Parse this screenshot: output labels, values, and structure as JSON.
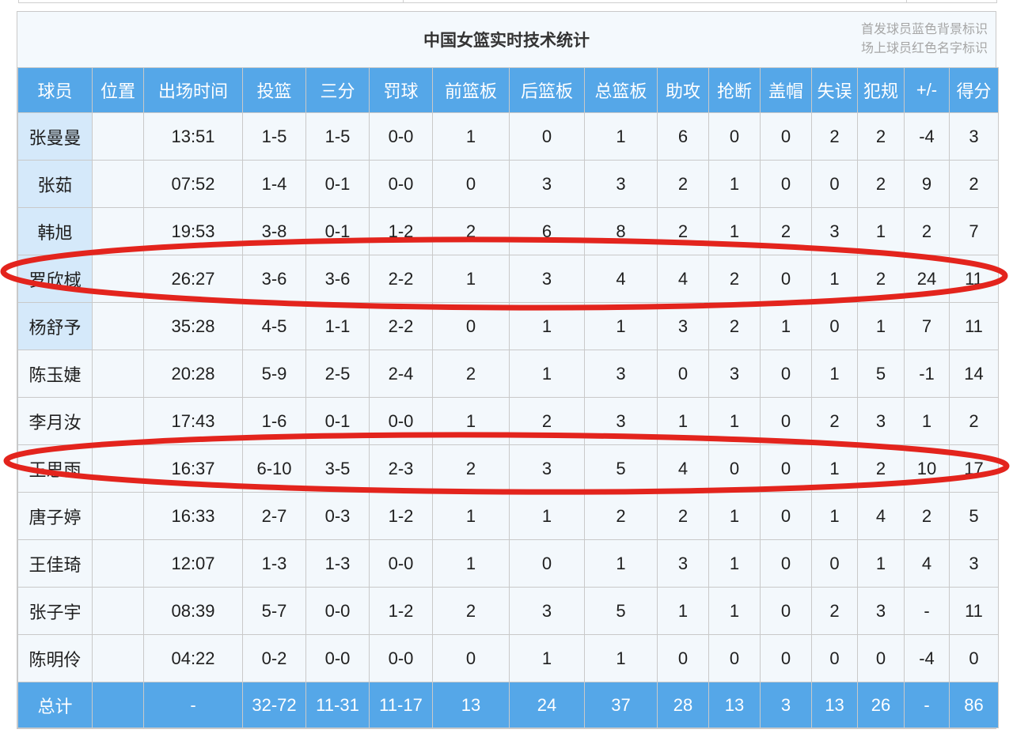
{
  "title": {
    "text": "中国女篮实时技术统计"
  },
  "legend": {
    "line1": "首发球员蓝色背景标识",
    "line2": "场上球员红色名字标识"
  },
  "table": {
    "headers": [
      "球员",
      "位置",
      "出场时间",
      "投篮",
      "三分",
      "罚球",
      "前篮板",
      "后篮板",
      "总篮板",
      "助攻",
      "抢断",
      "盖帽",
      "失误",
      "犯规",
      "+/-",
      "得分"
    ],
    "rows": [
      {
        "player": "张曼曼",
        "starter": true,
        "circled": false,
        "position": "",
        "stats": [
          "13:51",
          "1-5",
          "1-5",
          "0-0",
          "1",
          "0",
          "1",
          "6",
          "0",
          "0",
          "2",
          "2",
          "-4",
          "3"
        ]
      },
      {
        "player": "张茹",
        "starter": true,
        "circled": false,
        "position": "",
        "stats": [
          "07:52",
          "1-4",
          "0-1",
          "0-0",
          "0",
          "3",
          "3",
          "2",
          "1",
          "0",
          "0",
          "2",
          "9",
          "2"
        ]
      },
      {
        "player": "韩旭",
        "starter": true,
        "circled": false,
        "position": "",
        "stats": [
          "19:53",
          "3-8",
          "0-1",
          "1-2",
          "2",
          "6",
          "8",
          "2",
          "1",
          "2",
          "3",
          "1",
          "2",
          "7"
        ]
      },
      {
        "player": "罗欣棫",
        "starter": true,
        "circled": true,
        "position": "",
        "stats": [
          "26:27",
          "3-6",
          "3-6",
          "2-2",
          "1",
          "3",
          "4",
          "4",
          "2",
          "0",
          "1",
          "2",
          "24",
          "11"
        ]
      },
      {
        "player": "杨舒予",
        "starter": true,
        "circled": false,
        "position": "",
        "stats": [
          "35:28",
          "4-5",
          "1-1",
          "2-2",
          "0",
          "1",
          "1",
          "3",
          "2",
          "1",
          "0",
          "1",
          "7",
          "11"
        ]
      },
      {
        "player": "陈玉婕",
        "starter": false,
        "circled": false,
        "position": "",
        "stats": [
          "20:28",
          "5-9",
          "2-5",
          "2-4",
          "2",
          "1",
          "3",
          "0",
          "3",
          "0",
          "1",
          "5",
          "-1",
          "14"
        ]
      },
      {
        "player": "李月汝",
        "starter": false,
        "circled": false,
        "position": "",
        "stats": [
          "17:43",
          "1-6",
          "0-1",
          "0-0",
          "1",
          "2",
          "3",
          "1",
          "1",
          "0",
          "2",
          "3",
          "1",
          "2"
        ]
      },
      {
        "player": "王思雨",
        "starter": false,
        "circled": true,
        "position": "",
        "stats": [
          "16:37",
          "6-10",
          "3-5",
          "2-3",
          "2",
          "3",
          "5",
          "4",
          "0",
          "0",
          "1",
          "2",
          "10",
          "17"
        ]
      },
      {
        "player": "唐子婷",
        "starter": false,
        "circled": false,
        "position": "",
        "stats": [
          "16:33",
          "2-7",
          "0-3",
          "1-2",
          "1",
          "1",
          "2",
          "2",
          "1",
          "0",
          "1",
          "4",
          "2",
          "5"
        ]
      },
      {
        "player": "王佳琦",
        "starter": false,
        "circled": false,
        "position": "",
        "stats": [
          "12:07",
          "1-3",
          "1-3",
          "0-0",
          "1",
          "0",
          "1",
          "3",
          "1",
          "0",
          "0",
          "1",
          "4",
          "3"
        ]
      },
      {
        "player": "张子宇",
        "starter": false,
        "circled": false,
        "position": "",
        "stats": [
          "08:39",
          "5-7",
          "0-0",
          "1-2",
          "2",
          "3",
          "5",
          "1",
          "1",
          "0",
          "2",
          "3",
          "-",
          "11"
        ]
      },
      {
        "player": "陈明伶",
        "starter": false,
        "circled": false,
        "position": "",
        "stats": [
          "04:22",
          "0-2",
          "0-0",
          "0-0",
          "0",
          "1",
          "1",
          "0",
          "0",
          "0",
          "0",
          "0",
          "-4",
          "0"
        ]
      }
    ],
    "totals": {
      "label": "总计",
      "position": "",
      "stats": [
        "-",
        "32-72",
        "11-31",
        "11-17",
        "13",
        "24",
        "37",
        "28",
        "13",
        "3",
        "13",
        "26",
        "-",
        "86"
      ]
    }
  },
  "colors": {
    "header_blue": "#55a7e8",
    "starter_cell_blue": "#d5e9fa",
    "row_bg": "#f3f8fc",
    "title_band_bg": "#f4f9fd",
    "border_gray": "#c9c9c9",
    "annotation_red": "#e3241d",
    "legend_gray": "#a6a6a6",
    "text_dark": "#1f1f1f"
  }
}
